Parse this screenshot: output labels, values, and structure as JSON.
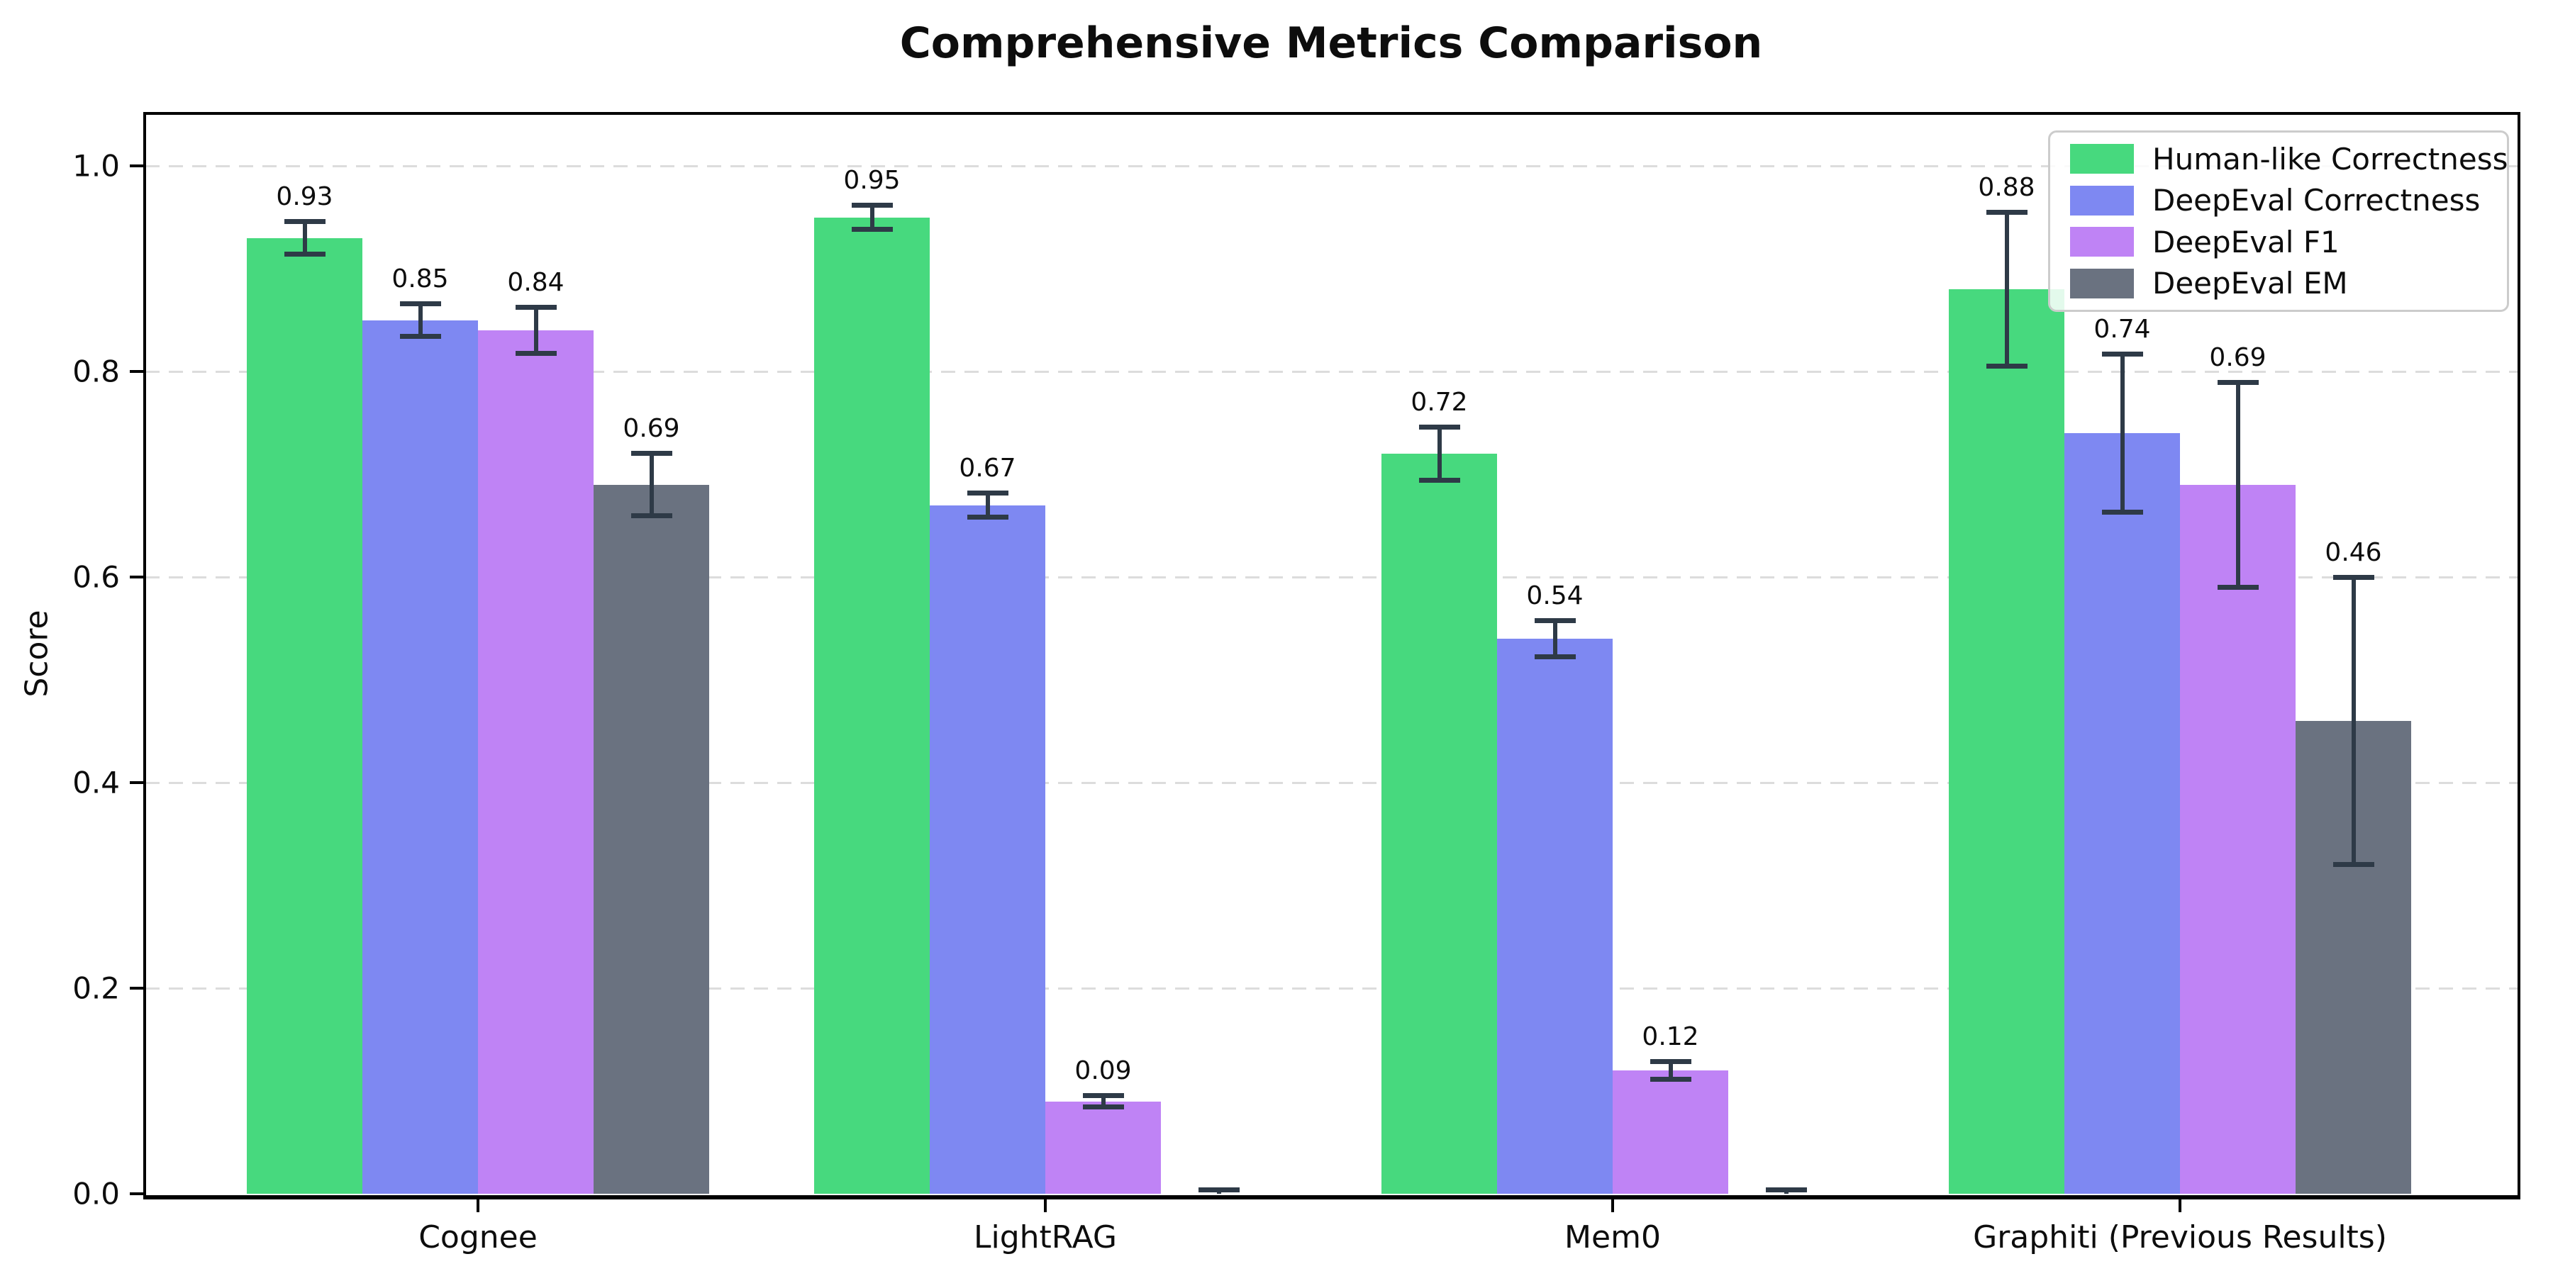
{
  "chart_data": {
    "type": "bar",
    "title": "Comprehensive Metrics Comparison",
    "xlabel": "",
    "ylabel": "Score",
    "ylim": [
      0.0,
      1.053
    ],
    "yticks": [
      0.0,
      0.2,
      0.4,
      0.6,
      0.8,
      1.0
    ],
    "ytick_labels": [
      "0.0",
      "0.2",
      "0.4",
      "0.6",
      "0.8",
      "1.0"
    ],
    "grid": "horizontal-dashed",
    "legend_position": "upper right",
    "categories": [
      "Cognee",
      "LightRAG",
      "Mem0",
      "Graphiti (Previous Results)"
    ],
    "series": [
      {
        "name": "Human-like Correctness",
        "color": "#47d97e",
        "values": [
          0.93,
          0.95,
          0.72,
          0.88
        ],
        "errors": [
          0.016,
          0.012,
          0.026,
          0.075
        ],
        "labels": [
          "0.93",
          "0.95",
          "0.72",
          "0.88"
        ]
      },
      {
        "name": "DeepEval Correctness",
        "color": "#7e88f2",
        "values": [
          0.85,
          0.67,
          0.54,
          0.74
        ],
        "errors": [
          0.016,
          0.012,
          0.018,
          0.077
        ],
        "labels": [
          "0.85",
          "0.67",
          "0.54",
          "0.74"
        ]
      },
      {
        "name": "DeepEval F1",
        "color": "#bf83f5",
        "values": [
          0.84,
          0.09,
          0.12,
          0.69
        ],
        "errors": [
          0.023,
          0.006,
          0.009,
          0.1
        ],
        "labels": [
          "0.84",
          "0.09",
          "0.12",
          "0.69"
        ]
      },
      {
        "name": "DeepEval EM",
        "color": "#6a7280",
        "values": [
          0.69,
          0.0,
          0.0,
          0.46
        ],
        "errors": [
          0.031,
          0.004,
          0.004,
          0.14
        ],
        "labels": [
          "0.69",
          "",
          "",
          "0.46"
        ]
      }
    ],
    "style": {
      "errorbar_color": "#2e3a47",
      "grid_color": "#dcdcdc",
      "background": "#ffffff"
    }
  }
}
